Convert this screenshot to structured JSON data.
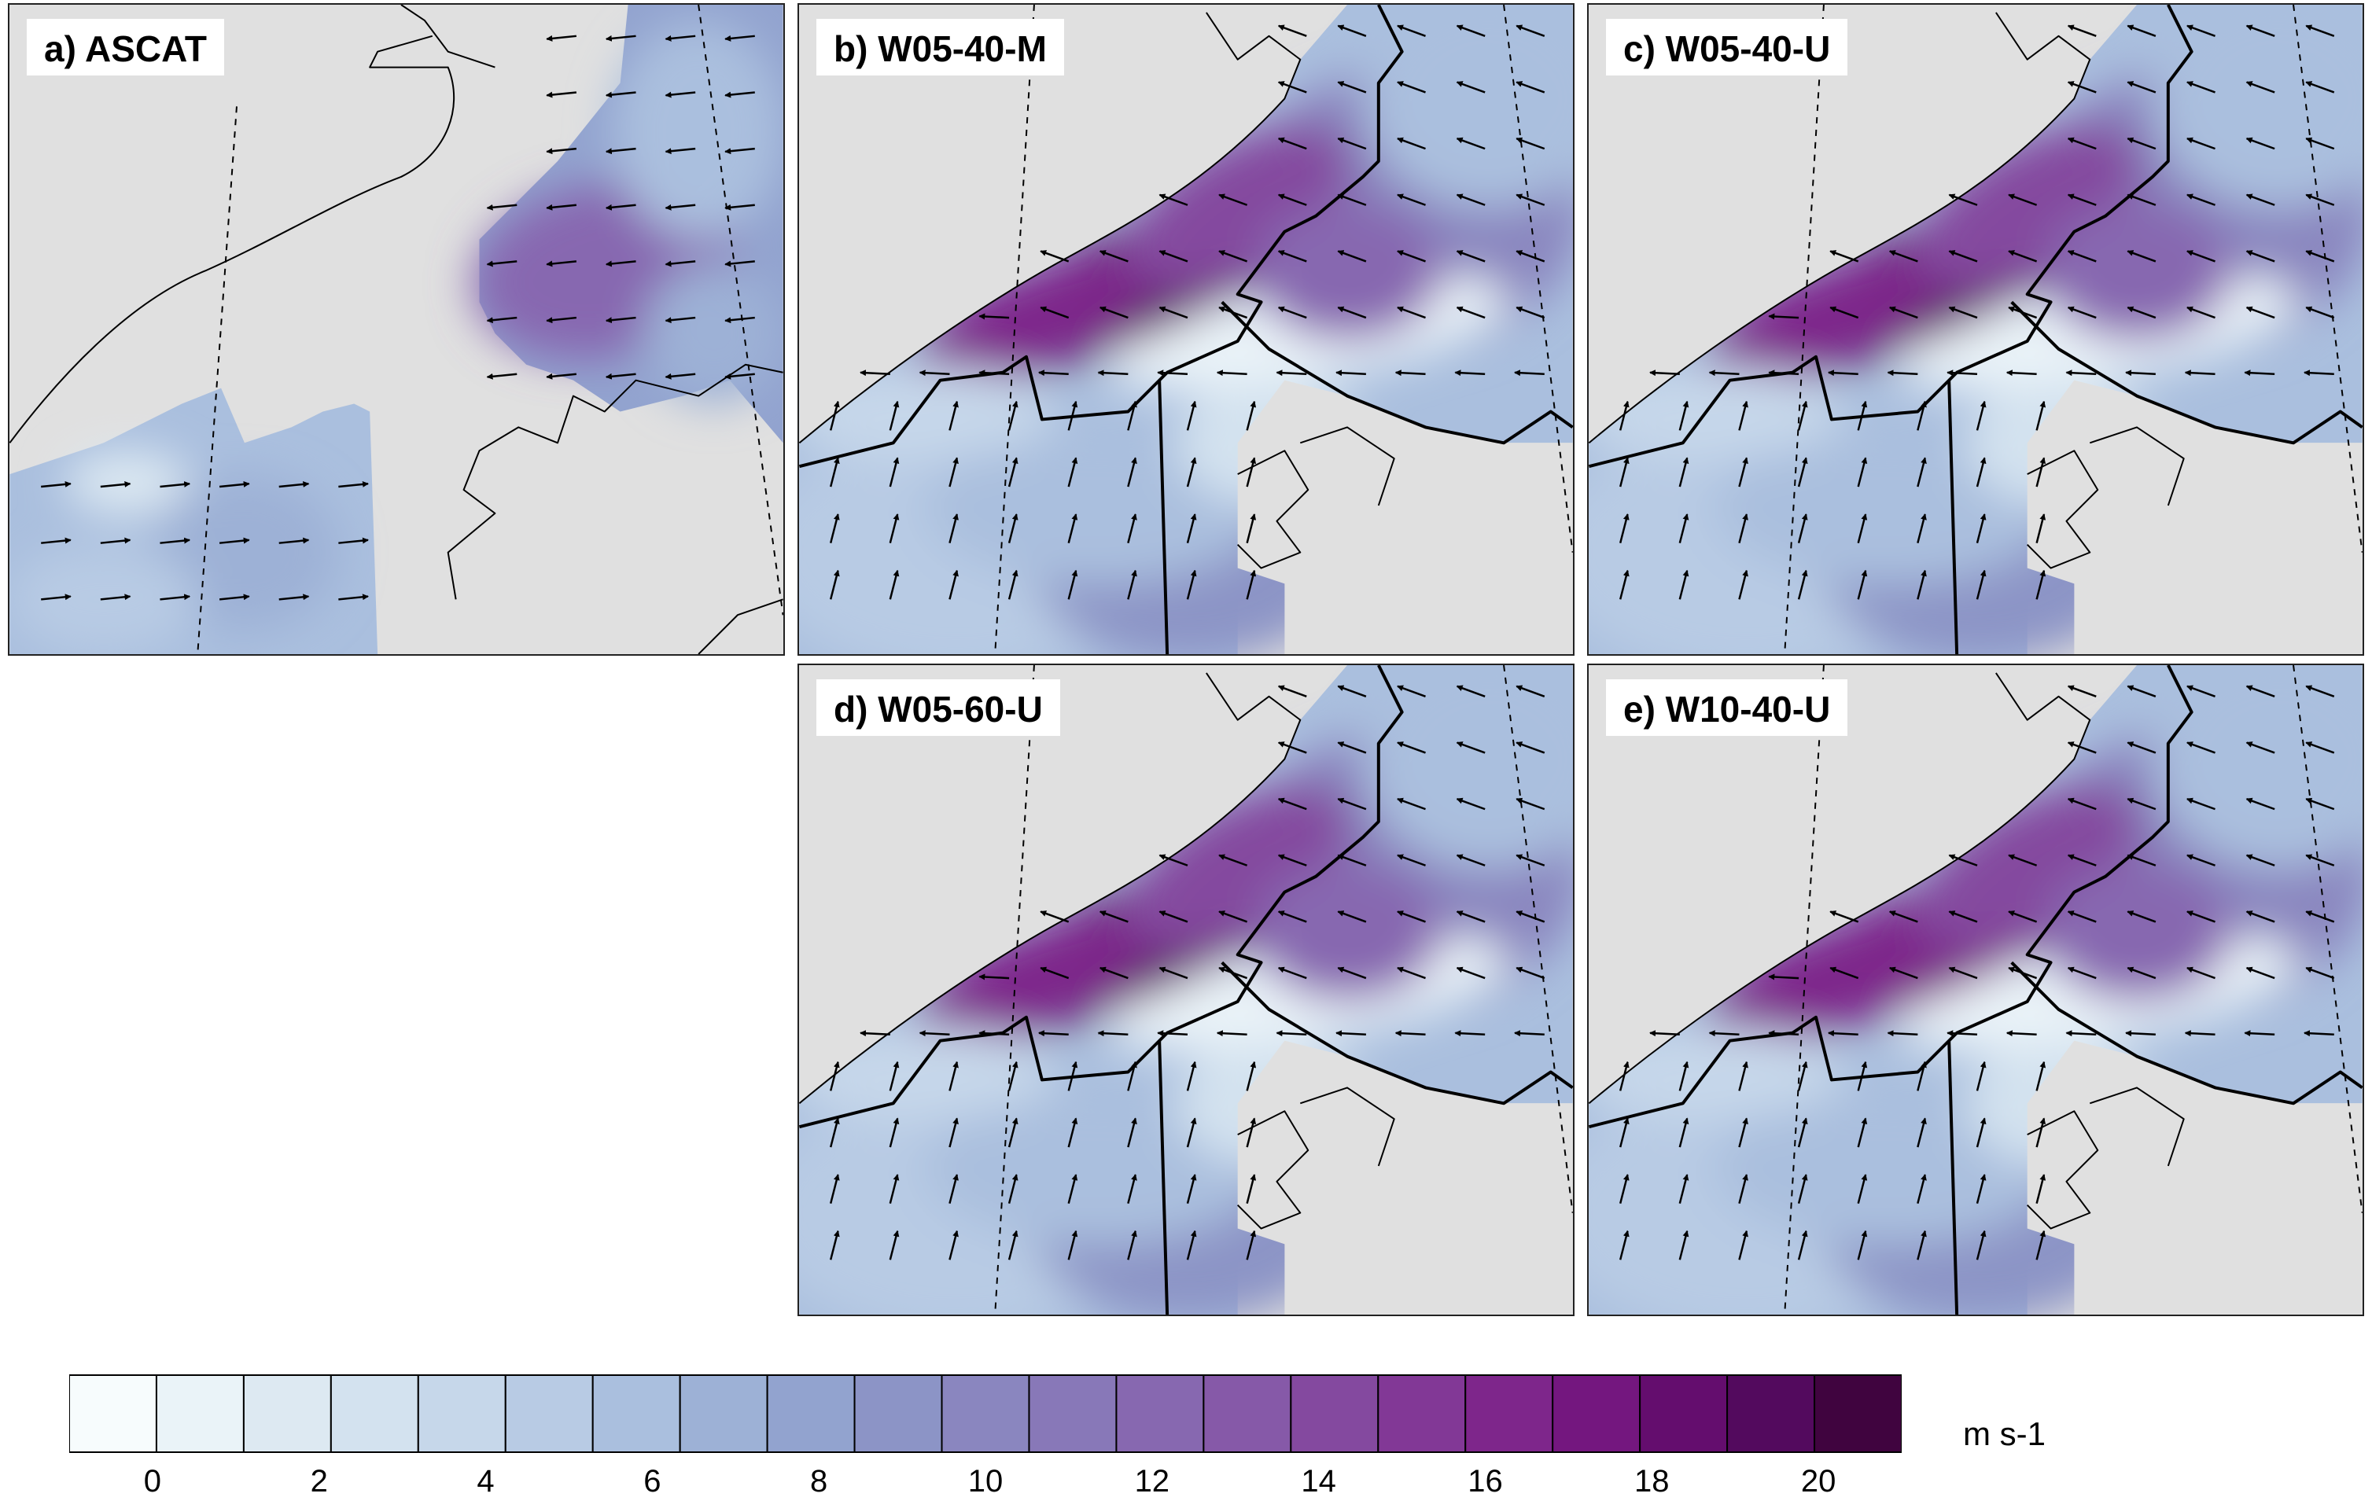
{
  "panels": [
    {
      "id": "a",
      "label": "a) ASCAT"
    },
    {
      "id": "b",
      "label": "b) W05-40-M"
    },
    {
      "id": "c",
      "label": "c) W05-40-U"
    },
    {
      "id": "d",
      "label": "d) W05-60-U"
    },
    {
      "id": "e",
      "label": "e) W10-40-U"
    }
  ],
  "colorbar": {
    "unit": "m s-1",
    "min": -1,
    "max": 21,
    "tick_values": [
      0,
      2,
      4,
      6,
      8,
      10,
      12,
      14,
      16,
      18,
      20
    ],
    "tick_labels": [
      "0",
      "2",
      "4",
      "6",
      "8",
      "10",
      "12",
      "14",
      "16",
      "18",
      "20"
    ],
    "colors": [
      "#f7fcfd",
      "#eaf3f8",
      "#dde9f2",
      "#d3e2ef",
      "#c6d7ea",
      "#b8cbe4",
      "#aabfde",
      "#9db1d6",
      "#92a3cf",
      "#8c94c6",
      "#8a86bf",
      "#8878b8",
      "#8768b0",
      "#8659a8",
      "#84499f",
      "#823896",
      "#7e268b",
      "#74177f",
      "#640d6e",
      "#530a5e",
      "#40043f"
    ]
  },
  "colors": {
    "land": "#e0e0e0",
    "coast": "#000000",
    "background": "#ffffff"
  }
}
